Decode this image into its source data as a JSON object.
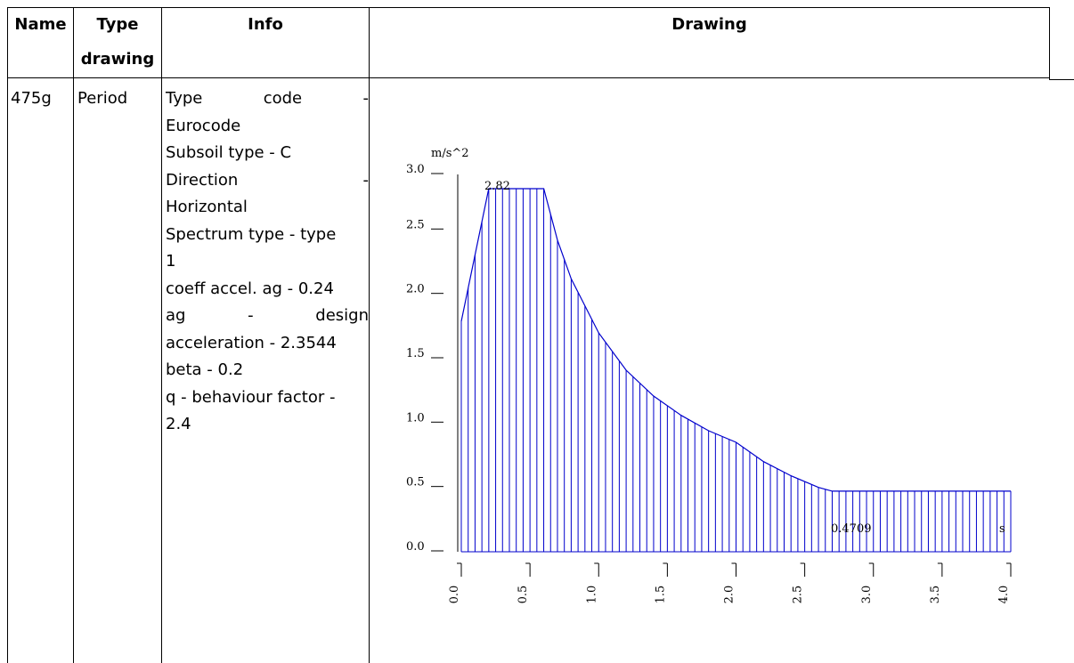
{
  "table": {
    "headers": {
      "name": "Name",
      "type_line1": "Type",
      "type_line2": "drawing",
      "info": "Info",
      "drawing": "Drawing"
    },
    "row": {
      "name": "475g",
      "type": "Period",
      "info_lines": [
        {
          "text": "Type code -",
          "parts": [
            "Type",
            "code",
            "-"
          ]
        },
        {
          "text": "Eurocode"
        },
        {
          "text": "Subsoil type - C"
        },
        {
          "text": "Direction -",
          "parts": [
            "Direction",
            "-"
          ]
        },
        {
          "text": "Horizontal"
        },
        {
          "text": "Spectrum type - type"
        },
        {
          "text": "1"
        },
        {
          "text": "coeff accel. ag - 0.24"
        },
        {
          "text": "ag - design",
          "parts": [
            "ag",
            "-",
            "design"
          ]
        },
        {
          "text": "acceleration - 2.3544"
        },
        {
          "text": "beta - 0.2"
        },
        {
          "text": "q - behaviour factor -"
        },
        {
          "text": "2.4"
        }
      ]
    }
  },
  "chart_data": {
    "type": "area",
    "ylabel": "m/s^2",
    "xlabel": "s",
    "xlim": [
      0.0,
      4.0
    ],
    "ylim": [
      0.0,
      3.0
    ],
    "y_ticks": [
      "0.0",
      "0.5",
      "1.0",
      "1.5",
      "2.0",
      "2.5",
      "3.0"
    ],
    "x_ticks": [
      "0.0",
      "0.5",
      "1.0",
      "1.5",
      "2.0",
      "2.5",
      "3.0",
      "3.5",
      "4.0"
    ],
    "annotations": [
      {
        "text": "2.82",
        "x": 0.35,
        "y": 2.82
      },
      {
        "text": "0.4709",
        "x": 2.95,
        "y": 0.4709
      }
    ],
    "curve": [
      [
        0.0,
        1.79
      ],
      [
        0.2,
        2.82
      ],
      [
        0.6,
        2.82
      ],
      [
        0.7,
        2.42
      ],
      [
        0.8,
        2.12
      ],
      [
        1.0,
        1.7
      ],
      [
        1.2,
        1.41
      ],
      [
        1.4,
        1.21
      ],
      [
        1.6,
        1.06
      ],
      [
        1.8,
        0.94
      ],
      [
        2.0,
        0.85
      ],
      [
        2.2,
        0.7
      ],
      [
        2.4,
        0.59
      ],
      [
        2.6,
        0.5
      ],
      [
        2.7,
        0.4709
      ],
      [
        4.0,
        0.4709
      ]
    ],
    "hatch_step": 0.05,
    "color": "#0000cc"
  }
}
